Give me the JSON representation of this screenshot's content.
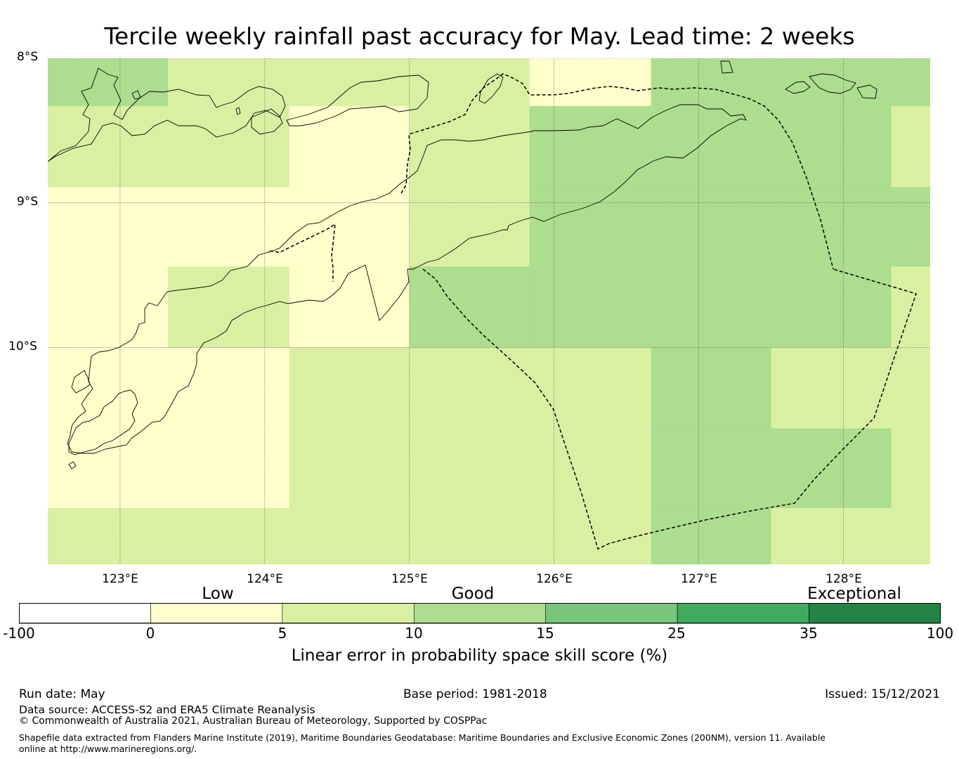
{
  "title": "Tercile weekly rainfall past accuracy for May. Lead time: 2 weeks",
  "map": {
    "lon_range": [
      122.5,
      128.6
    ],
    "lat_range": [
      -11.5,
      -8.0
    ],
    "lat_ticks": [
      {
        "value": -8,
        "label": "8°S"
      },
      {
        "value": -9,
        "label": "9°S"
      },
      {
        "value": -10,
        "label": "10°S"
      }
    ],
    "lon_ticks": [
      {
        "value": 123,
        "label": "123°E"
      },
      {
        "value": 124,
        "label": "124°E"
      },
      {
        "value": 125,
        "label": "125°E"
      },
      {
        "value": 126,
        "label": "126°E"
      },
      {
        "value": 127,
        "label": "127°E"
      },
      {
        "value": 128,
        "label": "128°E"
      }
    ],
    "grid_lon_edges": [
      122.5,
      123.33,
      124.17,
      125.0,
      125.83,
      126.67,
      127.5,
      128.33,
      128.6
    ],
    "grid_lat_edges": [
      -8.0,
      -8.33,
      -8.89,
      -9.44,
      -10.0,
      -10.56,
      -11.11,
      -11.5
    ],
    "skill_category_grid": [
      [
        3,
        2,
        2,
        2,
        1,
        3,
        3,
        3
      ],
      [
        2,
        2,
        1,
        2,
        3,
        3,
        3,
        2
      ],
      [
        1,
        1,
        1,
        2,
        3,
        3,
        3,
        3
      ],
      [
        1,
        2,
        1,
        3,
        3,
        3,
        3,
        2
      ],
      [
        1,
        1,
        2,
        2,
        2,
        3,
        2,
        2
      ],
      [
        1,
        1,
        2,
        2,
        2,
        3,
        3,
        2
      ],
      [
        2,
        2,
        2,
        2,
        2,
        3,
        2,
        2
      ]
    ]
  },
  "colorbar": {
    "category_labels": [
      {
        "label": "Low",
        "value": -50
      },
      {
        "label": "Good",
        "value": 12.5
      },
      {
        "label": "Exceptional",
        "value": 67.5
      }
    ],
    "ticks": [
      "-100",
      "0",
      "5",
      "10",
      "15",
      "25",
      "35",
      "100"
    ],
    "colors": [
      "#ffffff",
      "#ffffcc",
      "#d9f0a3",
      "#addd8e",
      "#78c679",
      "#41ab5d",
      "#238443"
    ],
    "title": "Linear error in probability space skill score (%)"
  },
  "footer": {
    "run_date": "Run date: May",
    "base_period": "Base period: 1981-2018",
    "issued": "Issued: 15/12/2021",
    "data_source": "Data source: ACCESS-S2 and ERA5 Climate Reanalysis",
    "copyright": "© Commonwealth of Australia 2021, Australian Bureau of Meteorology, Supported by COSPPac",
    "shapefile": "Shapefile data extracted from Flanders Marine Institute (2019), Maritime Boundaries Geodatabase: Maritime Boundaries and Exclusive Economic Zones (200NM), version 11. Available online at http://www.marineregions.org/."
  }
}
